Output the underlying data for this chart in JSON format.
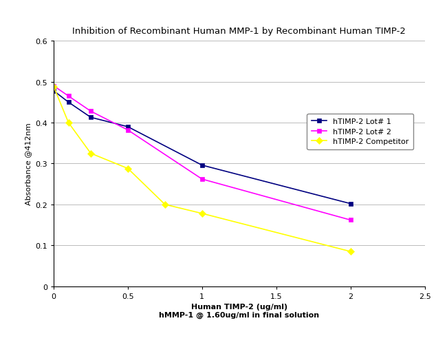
{
  "title": "Inhibition of Recombinant Human MMP-1 by Recombinant Human TIMP-2",
  "xlabel_line1": "Human TIMP-2 (ug/ml)",
  "xlabel_line2": "hMMP-1 @ 1.60ug/ml in final solution",
  "ylabel": "Absorbance @412nm",
  "xlim": [
    0,
    2.5
  ],
  "ylim": [
    0,
    0.6
  ],
  "xticks": [
    0,
    0.5,
    1,
    1.5,
    2,
    2.5
  ],
  "yticks": [
    0,
    0.1,
    0.2,
    0.3,
    0.4,
    0.5,
    0.6
  ],
  "series": [
    {
      "label": "hTIMP-2 Lot# 1",
      "color": "#000080",
      "marker": "s",
      "x": [
        0.0,
        0.1,
        0.25,
        0.5,
        1.0,
        2.0
      ],
      "y": [
        0.478,
        0.45,
        0.413,
        0.39,
        0.296,
        0.202
      ]
    },
    {
      "label": "hTIMP-2 Lot# 2",
      "color": "#FF00FF",
      "marker": "s",
      "x": [
        0.0,
        0.1,
        0.25,
        0.5,
        1.0,
        2.0
      ],
      "y": [
        0.49,
        0.465,
        0.428,
        0.382,
        0.262,
        0.162
      ]
    },
    {
      "label": "hTIMP-2 Competitor",
      "color": "#FFFF00",
      "marker": "D",
      "x": [
        0.0,
        0.1,
        0.25,
        0.5,
        0.75,
        1.0,
        2.0
      ],
      "y": [
        0.488,
        0.4,
        0.325,
        0.288,
        0.2,
        0.178,
        0.085
      ]
    }
  ],
  "background_color": "#ffffff",
  "grid_color": "#bbbbbb",
  "title_fontsize": 9.5,
  "label_fontsize": 8,
  "tick_fontsize": 8,
  "legend_fontsize": 8
}
